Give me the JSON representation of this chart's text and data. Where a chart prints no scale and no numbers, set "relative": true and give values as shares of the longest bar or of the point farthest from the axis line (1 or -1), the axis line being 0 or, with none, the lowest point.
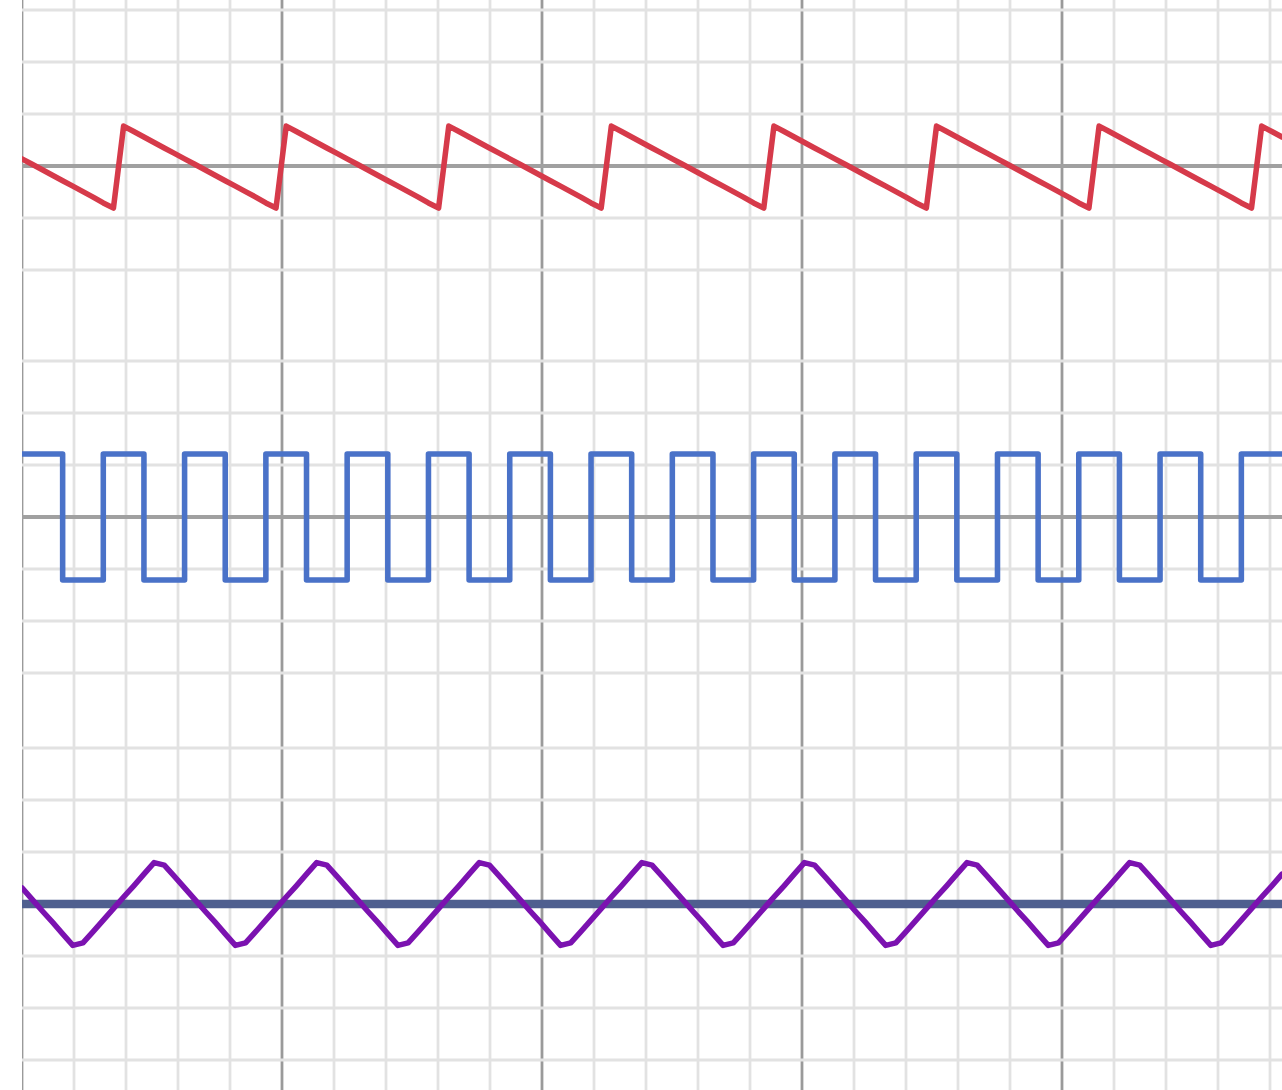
{
  "chart_data": [
    {
      "type": "line",
      "relative": true,
      "grid": true,
      "categories": [
        null,
        null,
        null,
        null,
        null,
        null,
        null,
        null,
        null,
        null,
        null,
        null,
        null,
        null,
        null,
        null,
        null,
        null,
        null,
        null,
        null,
        null,
        null,
        null,
        null,
        null,
        null,
        null,
        null,
        null,
        null,
        null,
        null,
        null,
        null,
        null,
        null,
        null,
        null,
        null,
        null,
        null,
        null,
        null,
        null,
        null,
        null,
        null,
        null,
        null,
        null,
        null,
        null,
        null,
        null,
        null,
        null,
        null,
        null,
        null,
        null,
        null,
        null,
        null,
        null,
        null,
        null,
        null,
        null,
        null,
        null,
        null,
        null,
        null,
        null,
        null,
        null,
        null,
        null,
        null,
        null,
        null,
        null,
        null,
        null,
        null,
        null,
        null,
        null,
        null,
        null,
        null,
        null,
        null,
        null,
        null,
        null,
        null,
        null,
        null,
        null,
        null,
        null,
        null,
        null,
        null,
        null,
        null,
        null,
        null,
        null,
        null,
        null,
        null,
        null,
        null,
        null,
        null,
        null,
        null,
        null,
        null,
        null,
        null,
        null
      ],
      "series": [
        {
          "color": "#d63a4a",
          "values": [
            0.17,
            0.04,
            -0.09,
            -0.22,
            -0.35,
            -0.48,
            -0.61,
            -0.74,
            -0.88,
            -1,
            0.95,
            0.82,
            0.69,
            0.56,
            0.43,
            0.3,
            0.17,
            0.04,
            -0.09,
            -0.22,
            -0.35,
            -0.48,
            -0.61,
            -0.74,
            -0.88,
            -1,
            0.95,
            0.82,
            0.69,
            0.56,
            0.43,
            0.3,
            0.17,
            0.04,
            -0.09,
            -0.22,
            -0.35,
            -0.48,
            -0.61,
            -0.74,
            -0.88,
            -1,
            0.95,
            0.82,
            0.69,
            0.56,
            0.43,
            0.3,
            0.17,
            0.04,
            -0.09,
            -0.22,
            -0.35,
            -0.48,
            -0.61,
            -0.74,
            -0.88,
            -1,
            0.95,
            0.82,
            0.69,
            0.56,
            0.43,
            0.3,
            0.17,
            0.04,
            -0.09,
            -0.22,
            -0.35,
            -0.48,
            -0.61,
            -0.74,
            -0.88,
            -1,
            0.95,
            0.82,
            0.69,
            0.56,
            0.43,
            0.3,
            0.17,
            0.04,
            -0.09,
            -0.22,
            -0.35,
            -0.48,
            -0.61,
            -0.74,
            -0.88,
            -1,
            0.95,
            0.82,
            0.69,
            0.56,
            0.43,
            0.3,
            0.17,
            0.04,
            -0.09,
            -0.22,
            -0.35,
            -0.48,
            -0.61,
            -0.74,
            -0.88,
            -1,
            0.95,
            0.82,
            0.69,
            0.56,
            0.43,
            0.3,
            0.17,
            0.04,
            -0.09,
            -0.22,
            -0.35,
            -0.48,
            -0.61,
            -0.74,
            -0.88,
            -1,
            0.95,
            0.82,
            0.69
          ]
        }
      ]
    },
    {
      "type": "step",
      "relative": true,
      "grid": true,
      "categories": [
        null,
        null,
        null,
        null,
        null,
        null,
        null,
        null,
        null,
        null,
        null,
        null,
        null,
        null,
        null,
        null,
        null,
        null,
        null,
        null,
        null,
        null,
        null,
        null,
        null,
        null,
        null,
        null,
        null,
        null,
        null,
        null,
        null,
        null,
        null,
        null,
        null,
        null,
        null,
        null,
        null,
        null,
        null,
        null,
        null,
        null,
        null,
        null,
        null,
        null,
        null,
        null,
        null,
        null,
        null,
        null,
        null,
        null,
        null,
        null,
        null,
        null,
        null,
        null,
        null,
        null,
        null,
        null,
        null,
        null,
        null,
        null,
        null,
        null,
        null,
        null,
        null,
        null,
        null,
        null,
        null,
        null,
        null,
        null,
        null,
        null,
        null,
        null,
        null,
        null,
        null,
        null,
        null,
        null,
        null,
        null,
        null,
        null,
        null,
        null,
        null,
        null,
        null,
        null,
        null,
        null,
        null,
        null,
        null,
        null,
        null,
        null,
        null,
        null,
        null,
        null,
        null,
        null,
        null,
        null,
        null,
        null,
        null,
        null,
        null
      ],
      "series": [
        {
          "color": "#4a72c8",
          "values": [
            1,
            1,
            1,
            1,
            -1,
            -1,
            -1,
            -1,
            1,
            1,
            1,
            1,
            -1,
            -1,
            -1,
            -1,
            1,
            1,
            1,
            1,
            -1,
            -1,
            -1,
            -1,
            1,
            1,
            1,
            1,
            -1,
            -1,
            -1,
            -1,
            1,
            1,
            1,
            1,
            -1,
            -1,
            -1,
            -1,
            1,
            1,
            1,
            1,
            -1,
            -1,
            -1,
            -1,
            1,
            1,
            1,
            1,
            -1,
            -1,
            -1,
            -1,
            1,
            1,
            1,
            1,
            -1,
            -1,
            -1,
            -1,
            1,
            1,
            1,
            1,
            -1,
            -1,
            -1,
            -1,
            1,
            1,
            1,
            1,
            -1,
            -1,
            -1,
            -1,
            1,
            1,
            1,
            1,
            -1,
            -1,
            -1,
            -1,
            1,
            1,
            1,
            1,
            -1,
            -1,
            -1,
            -1,
            1,
            1,
            1,
            1,
            -1,
            -1,
            -1,
            -1,
            1,
            1,
            1,
            1,
            -1,
            -1,
            -1,
            -1,
            1,
            1,
            1,
            1,
            -1,
            -1,
            -1,
            -1,
            1,
            1,
            1,
            1,
            1
          ]
        }
      ]
    },
    {
      "type": "line",
      "relative": true,
      "grid": true,
      "categories": [
        null,
        null,
        null,
        null,
        null,
        null,
        null,
        null,
        null,
        null,
        null,
        null,
        null,
        null,
        null,
        null,
        null,
        null,
        null,
        null,
        null,
        null,
        null,
        null,
        null,
        null,
        null,
        null,
        null,
        null,
        null,
        null,
        null,
        null,
        null,
        null,
        null,
        null,
        null,
        null,
        null,
        null,
        null,
        null,
        null,
        null,
        null,
        null,
        null,
        null,
        null,
        null,
        null,
        null,
        null,
        null,
        null,
        null,
        null,
        null,
        null,
        null,
        null,
        null,
        null,
        null,
        null,
        null,
        null,
        null,
        null,
        null,
        null,
        null,
        null,
        null,
        null,
        null,
        null,
        null,
        null,
        null,
        null,
        null,
        null,
        null,
        null,
        null,
        null,
        null,
        null,
        null,
        null,
        null,
        null,
        null,
        null,
        null,
        null,
        null,
        null,
        null,
        null,
        null,
        null,
        null,
        null,
        null,
        null,
        null,
        null,
        null,
        null,
        null,
        null,
        null,
        null,
        null,
        null,
        null,
        null,
        null,
        null,
        null,
        null
      ],
      "ref_lines": [
        {
          "axis": "y",
          "value": 0,
          "color": "#4f5f8f"
        }
      ],
      "series": [
        {
          "color": "#7b12b0",
          "values": [
            0.39,
            0.11,
            -0.17,
            -0.44,
            -0.72,
            -1,
            -0.94,
            -0.67,
            -0.39,
            -0.11,
            0.17,
            0.44,
            0.72,
            1,
            0.94,
            0.67,
            0.39,
            0.11,
            -0.17,
            -0.44,
            -0.72,
            -1,
            -0.94,
            -0.67,
            -0.39,
            -0.11,
            0.17,
            0.44,
            0.72,
            1,
            0.94,
            0.67,
            0.39,
            0.11,
            -0.17,
            -0.44,
            -0.72,
            -1,
            -0.94,
            -0.67,
            -0.39,
            -0.11,
            0.17,
            0.44,
            0.72,
            1,
            0.94,
            0.67,
            0.39,
            0.11,
            -0.17,
            -0.44,
            -0.72,
            -1,
            -0.94,
            -0.67,
            -0.39,
            -0.11,
            0.17,
            0.44,
            0.72,
            1,
            0.94,
            0.67,
            0.39,
            0.11,
            -0.17,
            -0.44,
            -0.72,
            -1,
            -0.94,
            -0.67,
            -0.39,
            -0.11,
            0.17,
            0.44,
            0.72,
            1,
            0.94,
            0.67,
            0.39,
            0.11,
            -0.17,
            -0.44,
            -0.72,
            -1,
            -0.94,
            -0.67,
            -0.39,
            -0.11,
            0.17,
            0.44,
            0.72,
            1,
            0.94,
            0.67,
            0.39,
            0.11,
            -0.17,
            -0.44,
            -0.72,
            -1,
            -0.94,
            -0.67,
            -0.39,
            -0.11,
            0.17,
            0.44,
            0.72,
            1,
            0.94,
            0.67,
            0.39,
            0.11,
            -0.17,
            -0.44,
            -0.72,
            -1,
            -0.94,
            -0.67,
            -0.39,
            -0.11,
            0.17,
            0.44,
            0.72
          ]
        }
      ]
    }
  ]
}
